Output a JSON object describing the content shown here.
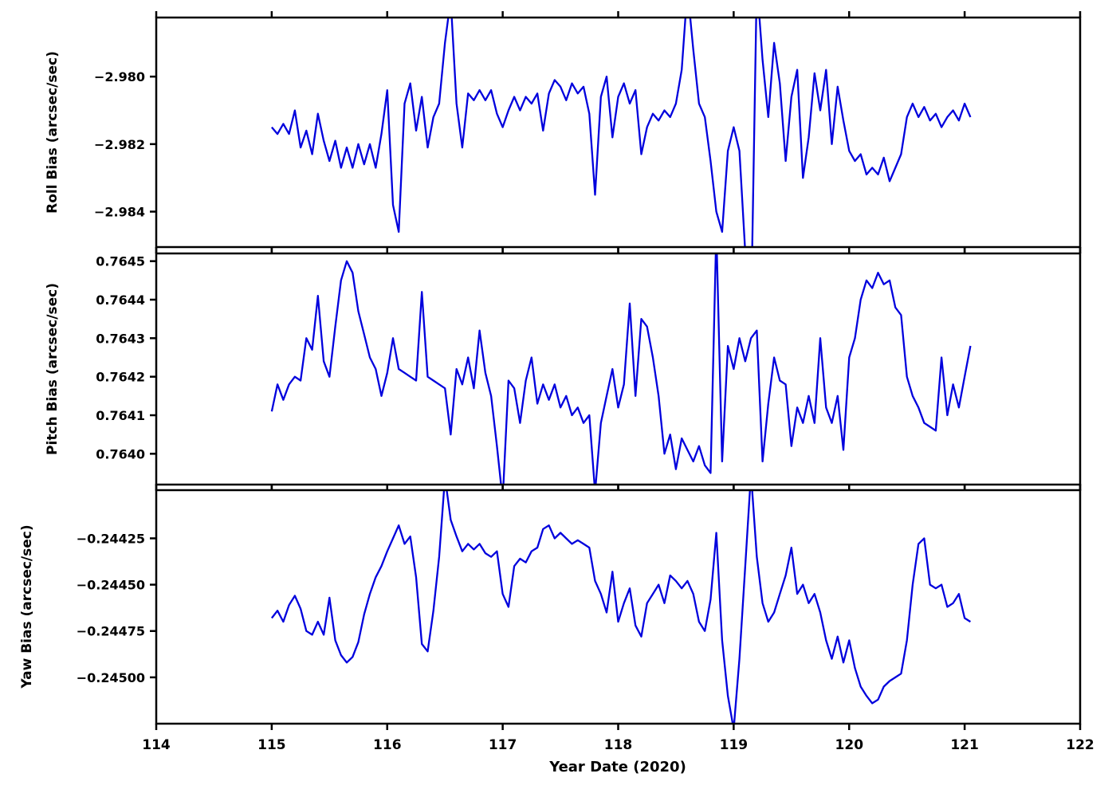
{
  "chart_data": {
    "type": "line",
    "xlabel": "Year Date (2020)",
    "xlim": [
      114,
      122
    ],
    "x_tick_values": [
      114,
      115,
      116,
      117,
      118,
      119,
      120,
      121,
      122
    ],
    "x_tick_labels": [
      "114",
      "115",
      "116",
      "117",
      "118",
      "119",
      "120",
      "121",
      "122"
    ],
    "line_color": "#0000dd",
    "line_width": 2.3,
    "layout": {
      "subplots": 3,
      "shared_x": true,
      "grid": false,
      "legend": false
    },
    "x": [
      115.0,
      115.05,
      115.1,
      115.15,
      115.2,
      115.25,
      115.3,
      115.35,
      115.4,
      115.45,
      115.5,
      115.55,
      115.6,
      115.65,
      115.7,
      115.75,
      115.8,
      115.85,
      115.9,
      115.95,
      116.0,
      116.05,
      116.1,
      116.15,
      116.2,
      116.25,
      116.3,
      116.35,
      116.4,
      116.45,
      116.5,
      116.55,
      116.6,
      116.65,
      116.7,
      116.75,
      116.8,
      116.85,
      116.9,
      116.95,
      117.0,
      117.05,
      117.1,
      117.15,
      117.2,
      117.25,
      117.3,
      117.35,
      117.4,
      117.45,
      117.5,
      117.55,
      117.6,
      117.65,
      117.7,
      117.75,
      117.8,
      117.85,
      117.9,
      117.95,
      118.0,
      118.05,
      118.1,
      118.15,
      118.2,
      118.25,
      118.3,
      118.35,
      118.4,
      118.45,
      118.5,
      118.55,
      118.6,
      118.65,
      118.7,
      118.75,
      118.8,
      118.85,
      118.9,
      118.95,
      119.0,
      119.05,
      119.1,
      119.15,
      119.2,
      119.25,
      119.3,
      119.35,
      119.4,
      119.45,
      119.5,
      119.55,
      119.6,
      119.65,
      119.7,
      119.75,
      119.8,
      119.85,
      119.9,
      119.95,
      120.0,
      120.05,
      120.1,
      120.15,
      120.2,
      120.25,
      120.3,
      120.35,
      120.4,
      120.45,
      120.5,
      120.55,
      120.6,
      120.65,
      120.7,
      120.75,
      120.8,
      120.85,
      120.9,
      120.95,
      121.0,
      121.05
    ],
    "series": [
      {
        "id": "roll-bias",
        "name": "Roll Bias (arcsec/sec)",
        "ylim": [
          -2.98505,
          -2.97825
        ],
        "tick_values": [
          -2.98,
          -2.982,
          -2.984
        ],
        "tick_labels": [
          "−2.980",
          "−2.982",
          "−2.984"
        ],
        "values": [
          -2.9815,
          -2.9817,
          -2.9814,
          -2.9817,
          -2.981,
          -2.9821,
          -2.9816,
          -2.9823,
          -2.9811,
          -2.9819,
          -2.9825,
          -2.9819,
          -2.9827,
          -2.9821,
          -2.9827,
          -2.982,
          -2.9826,
          -2.982,
          -2.9827,
          -2.9817,
          -2.9804,
          -2.9838,
          -2.9846,
          -2.9808,
          -2.9802,
          -2.9816,
          -2.9806,
          -2.9821,
          -2.9812,
          -2.9808,
          -2.979,
          -2.9777,
          -2.9808,
          -2.9821,
          -2.9805,
          -2.9807,
          -2.9804,
          -2.9807,
          -2.9804,
          -2.9811,
          -2.9815,
          -2.981,
          -2.9806,
          -2.981,
          -2.9806,
          -2.9808,
          -2.9805,
          -2.9816,
          -2.9805,
          -2.9801,
          -2.9803,
          -2.9807,
          -2.9802,
          -2.9805,
          -2.9803,
          -2.9811,
          -2.9835,
          -2.9806,
          -2.98,
          -2.9818,
          -2.9806,
          -2.9802,
          -2.9808,
          -2.9804,
          -2.9823,
          -2.9815,
          -2.9811,
          -2.9813,
          -2.981,
          -2.9812,
          -2.9808,
          -2.9798,
          -2.9774,
          -2.9792,
          -2.9808,
          -2.9812,
          -2.9825,
          -2.984,
          -2.9846,
          -2.9822,
          -2.9815,
          -2.9822,
          -2.9852,
          -2.9872,
          -2.9772,
          -2.9795,
          -2.9812,
          -2.979,
          -2.9802,
          -2.9825,
          -2.9806,
          -2.9798,
          -2.983,
          -2.9818,
          -2.9799,
          -2.981,
          -2.9798,
          -2.982,
          -2.9803,
          -2.9813,
          -2.9822,
          -2.9825,
          -2.9823,
          -2.9829,
          -2.9827,
          -2.9829,
          -2.9824,
          -2.9831,
          -2.9827,
          -2.9823,
          -2.9812,
          -2.9808,
          -2.9812,
          -2.9809,
          -2.9813,
          -2.9811,
          -2.9815,
          -2.9812,
          -2.981,
          -2.9813,
          -2.9808,
          -2.9812
        ]
      },
      {
        "id": "pitch-bias",
        "name": "Pitch Bias (arcsec/sec)",
        "ylim": [
          0.76392,
          0.76452
        ],
        "tick_values": [
          0.7645,
          0.7644,
          0.7643,
          0.7642,
          0.7641,
          0.764
        ],
        "tick_labels": [
          "0.7645",
          "0.7644",
          "0.7643",
          "0.7642",
          "0.7641",
          "0.7640"
        ],
        "values": [
          0.76411,
          0.76418,
          0.76414,
          0.76418,
          0.7642,
          0.76419,
          0.7643,
          0.76427,
          0.76441,
          0.76424,
          0.7642,
          0.76433,
          0.76445,
          0.7645,
          0.76447,
          0.76437,
          0.76431,
          0.76425,
          0.76422,
          0.76415,
          0.76421,
          0.7643,
          0.76422,
          0.76421,
          0.7642,
          0.76419,
          0.76442,
          0.7642,
          0.76419,
          0.76418,
          0.76417,
          0.76405,
          0.76422,
          0.76418,
          0.76425,
          0.76417,
          0.76432,
          0.76421,
          0.76415,
          0.76402,
          0.76388,
          0.76419,
          0.76417,
          0.76408,
          0.76419,
          0.76425,
          0.76413,
          0.76418,
          0.76414,
          0.76418,
          0.76412,
          0.76415,
          0.7641,
          0.76412,
          0.76408,
          0.7641,
          0.7639,
          0.76408,
          0.76415,
          0.76422,
          0.76412,
          0.76418,
          0.76439,
          0.76415,
          0.76435,
          0.76433,
          0.76425,
          0.76415,
          0.764,
          0.76405,
          0.76396,
          0.76404,
          0.76401,
          0.76398,
          0.76402,
          0.76397,
          0.76395,
          0.76458,
          0.76398,
          0.76428,
          0.76422,
          0.7643,
          0.76424,
          0.7643,
          0.76432,
          0.76398,
          0.76413,
          0.76425,
          0.76419,
          0.76418,
          0.76402,
          0.76412,
          0.76408,
          0.76415,
          0.76408,
          0.7643,
          0.76412,
          0.76408,
          0.76415,
          0.76401,
          0.76425,
          0.7643,
          0.7644,
          0.76445,
          0.76443,
          0.76447,
          0.76444,
          0.76445,
          0.76438,
          0.76436,
          0.7642,
          0.76415,
          0.76412,
          0.76408,
          0.76407,
          0.76406,
          0.76425,
          0.7641,
          0.76418,
          0.76412,
          0.7642,
          0.76428
        ]
      },
      {
        "id": "yaw-bias",
        "name": "Yaw Bias (arcsec/sec)",
        "ylim": [
          -0.24525,
          -0.24399
        ],
        "tick_values": [
          -0.24425,
          -0.2445,
          -0.24475,
          -0.245
        ],
        "tick_labels": [
          "−0.24425",
          "−0.24450",
          "−0.24475",
          "−0.24500"
        ],
        "values": [
          -0.24468,
          -0.24464,
          -0.2447,
          -0.24461,
          -0.24456,
          -0.24463,
          -0.24475,
          -0.24477,
          -0.2447,
          -0.24477,
          -0.24457,
          -0.2448,
          -0.24488,
          -0.24492,
          -0.24489,
          -0.24481,
          -0.24466,
          -0.24455,
          -0.24446,
          -0.2444,
          -0.24432,
          -0.24425,
          -0.24418,
          -0.24428,
          -0.24424,
          -0.24446,
          -0.24482,
          -0.24486,
          -0.24464,
          -0.24435,
          -0.24392,
          -0.24415,
          -0.24424,
          -0.24432,
          -0.24428,
          -0.24431,
          -0.24428,
          -0.24433,
          -0.24435,
          -0.24432,
          -0.24455,
          -0.24462,
          -0.2444,
          -0.24436,
          -0.24438,
          -0.24432,
          -0.2443,
          -0.2442,
          -0.24418,
          -0.24425,
          -0.24422,
          -0.24425,
          -0.24428,
          -0.24426,
          -0.24428,
          -0.2443,
          -0.24448,
          -0.24455,
          -0.24465,
          -0.24443,
          -0.2447,
          -0.2446,
          -0.24452,
          -0.24472,
          -0.24478,
          -0.2446,
          -0.24455,
          -0.2445,
          -0.2446,
          -0.24445,
          -0.24448,
          -0.24452,
          -0.24448,
          -0.24455,
          -0.2447,
          -0.24475,
          -0.24458,
          -0.24422,
          -0.2448,
          -0.2451,
          -0.24528,
          -0.2449,
          -0.2444,
          -0.2439,
          -0.24435,
          -0.2446,
          -0.2447,
          -0.24465,
          -0.24455,
          -0.24445,
          -0.2443,
          -0.24455,
          -0.2445,
          -0.2446,
          -0.24455,
          -0.24465,
          -0.2448,
          -0.2449,
          -0.24478,
          -0.24492,
          -0.2448,
          -0.24495,
          -0.24505,
          -0.2451,
          -0.24514,
          -0.24512,
          -0.24505,
          -0.24502,
          -0.245,
          -0.24498,
          -0.2448,
          -0.2445,
          -0.24428,
          -0.24425,
          -0.2445,
          -0.24452,
          -0.2445,
          -0.24462,
          -0.2446,
          -0.24455,
          -0.24468,
          -0.2447
        ]
      }
    ]
  }
}
